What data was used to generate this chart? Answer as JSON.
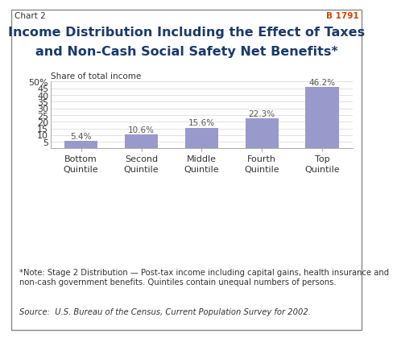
{
  "title_line1": "Income Distribution Including the Effect of Taxes",
  "title_line2": "and Non-Cash Social Safety Net Benefits*",
  "subtitle": "Share of total income",
  "categories": [
    "Bottom\nQuintile",
    "Second\nQuintile",
    "Middle\nQuintile",
    "Fourth\nQuintile",
    "Top\nQuintile"
  ],
  "values": [
    5.4,
    10.6,
    15.6,
    22.3,
    46.2
  ],
  "labels": [
    "5.4%",
    "10.6%",
    "15.6%",
    "22.3%",
    "46.2%"
  ],
  "bar_color": "#9999cc",
  "ylim": [
    0,
    50
  ],
  "yticks": [
    5,
    10,
    15,
    20,
    25,
    30,
    35,
    40,
    45,
    50
  ],
  "ytick_labels": [
    "5",
    "10",
    "15",
    "20",
    "25",
    "30",
    "35",
    "40",
    "45",
    "50%"
  ],
  "header_left": "Chart 2",
  "header_right": "B 1791",
  "note_text": "*Note: Stage 2 Distribution — Post-tax income including capital gains, health insurance and\nnon-cash government benefits. Quintiles contain unequal numbers of persons.",
  "source_text": "Source:  U.S. Bureau of the Census, Current Population Survey for 2002.",
  "title_fontsize": 11.5,
  "subtitle_fontsize": 7.5,
  "label_fontsize": 7.5,
  "tick_fontsize": 8,
  "xtick_fontsize": 8,
  "note_fontsize": 7.2,
  "source_fontsize": 7.2,
  "header_fontsize": 7.5,
  "background_color": "#ffffff",
  "header_bg_color": "#c8d4e0",
  "title_color": "#1a3a6b",
  "header_left_color": "#333333",
  "header_right_color": "#cc4400",
  "text_color": "#333333",
  "bar_label_color": "#555555",
  "border_color": "#888888",
  "grid_color": "#dddddd",
  "spine_color": "#aaaaaa"
}
